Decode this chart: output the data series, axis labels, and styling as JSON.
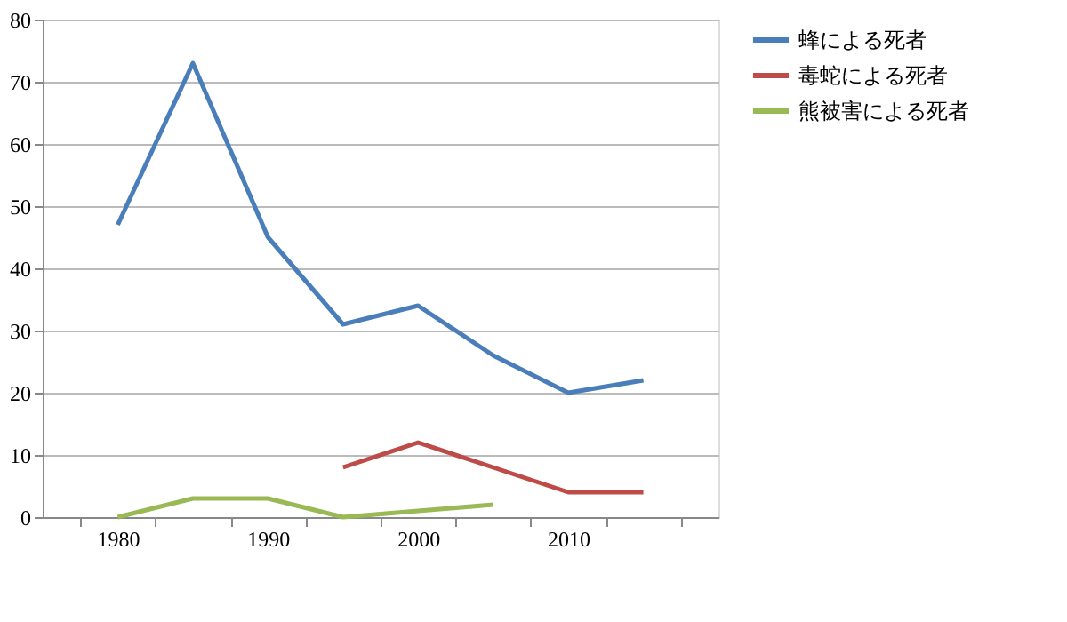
{
  "chart_data": {
    "type": "line",
    "categories": [
      "1980",
      null,
      "1990",
      null,
      "2000",
      null,
      "2010",
      null
    ],
    "series": [
      {
        "name": "蜂による死者",
        "color": "#4a7ebb",
        "values": [
          47,
          73,
          45,
          31,
          34,
          26,
          20,
          22
        ]
      },
      {
        "name": "毒蛇による死者",
        "color": "#be4b48",
        "values": [
          null,
          null,
          null,
          8,
          12,
          8,
          4,
          4
        ]
      },
      {
        "name": "熊被害による死者",
        "color": "#98b954",
        "values": [
          0,
          3,
          3,
          0,
          1,
          2,
          null,
          null
        ]
      }
    ],
    "ylim": [
      0,
      80
    ],
    "yticks": [
      0,
      10,
      20,
      30,
      40,
      50,
      60,
      70,
      80
    ],
    "grid": "y",
    "legend": "right",
    "marker": "none",
    "line_style": "solid"
  }
}
